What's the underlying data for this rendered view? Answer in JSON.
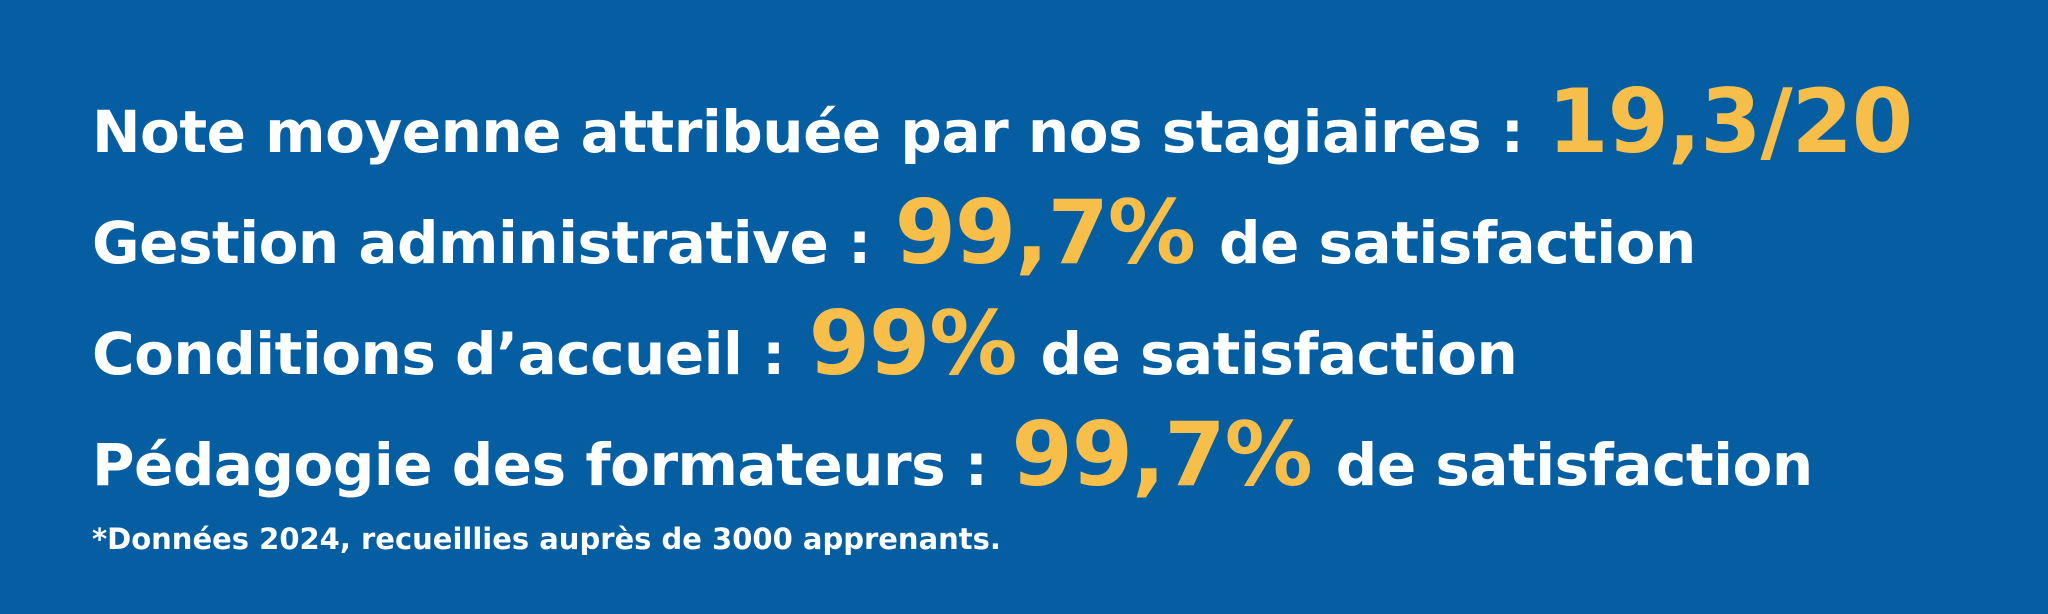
{
  "colors": {
    "background": "#055ea1",
    "text": "#ffffff",
    "accent": "#f7bf4a"
  },
  "stats": [
    {
      "label": "Note moyenne attribuée par nos stagiaires :",
      "value": "19,3/20",
      "suffix": ""
    },
    {
      "label": "Gestion administrative :",
      "value": "99,7%",
      "suffix": "de satisfaction"
    },
    {
      "label": "Conditions d’accueil :",
      "value": "99%",
      "suffix": "de satisfaction"
    },
    {
      "label": "Pédagogie des formateurs :",
      "value": "99,7%",
      "suffix": "de satisfaction"
    }
  ],
  "footnote": "*Données 2024, recueillies auprès de 3000 apprenants."
}
